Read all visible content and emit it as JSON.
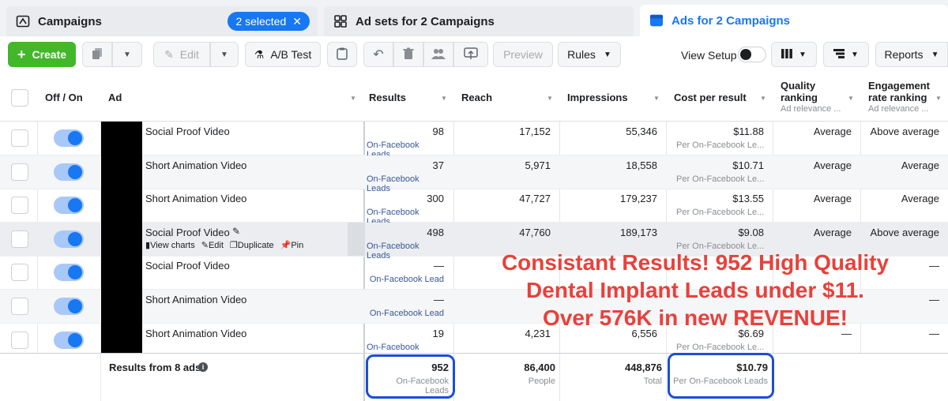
{
  "tabs": {
    "campaigns": "Campaigns",
    "selected": "2 selected",
    "adsets": "Ad sets for 2 Campaigns",
    "ads": "Ads for 2 Campaigns"
  },
  "toolbar": {
    "create": "Create",
    "edit": "Edit",
    "ab_test": "A/B Test",
    "preview": "Preview",
    "rules": "Rules",
    "view_setup": "View Setup",
    "reports": "Reports"
  },
  "columns": {
    "off_on": "Off / On",
    "ad": "Ad",
    "results": "Results",
    "reach": "Reach",
    "impressions": "Impressions",
    "cost": "Cost per result",
    "quality": "Quality ranking",
    "quality_sub": "Ad relevance ...",
    "engagement": "Engagement rate ranking",
    "engagement_sub": "Ad relevance ..."
  },
  "rows": [
    {
      "name": "Social Proof Video",
      "results": "98",
      "results_sub": "On-Facebook Leads",
      "reach": "17,152",
      "impressions": "55,346",
      "cost": "$11.88",
      "cost_sub": "Per On-Facebook Le...",
      "quality": "Average",
      "engagement": "Above average"
    },
    {
      "name": "Short Animation Video",
      "results": "37",
      "results_sub": "On-Facebook Leads",
      "reach": "5,971",
      "impressions": "18,558",
      "cost": "$10.71",
      "cost_sub": "Per On-Facebook Le...",
      "quality": "Average",
      "engagement": "Average"
    },
    {
      "name": "Short Animation Video",
      "results": "300",
      "results_sub": "On-Facebook Leads",
      "reach": "47,727",
      "impressions": "179,237",
      "cost": "$13.55",
      "cost_sub": "Per On-Facebook Le...",
      "quality": "Average",
      "engagement": "Average"
    },
    {
      "name": "Social Proof Video",
      "results": "498",
      "results_sub": "On-Facebook Leads",
      "reach": "47,760",
      "impressions": "189,173",
      "cost": "$9.08",
      "cost_sub": "Per On-Facebook Le...",
      "quality": "Average",
      "engagement": "Above average"
    },
    {
      "name": "Social Proof Video",
      "results": "—",
      "results_sub": "On-Facebook Lead",
      "reach": "",
      "impressions": "",
      "cost": "",
      "cost_sub": "",
      "quality": "",
      "engagement": "—"
    },
    {
      "name": "Short Animation Video",
      "results": "—",
      "results_sub": "On-Facebook Lead",
      "reach": "",
      "impressions": "",
      "cost": "",
      "cost_sub": "",
      "quality": "",
      "engagement": "—"
    },
    {
      "name": "Short Animation Video",
      "results": "19",
      "results_sub": "On-Facebook Leads",
      "reach": "4,231",
      "impressions": "6,556",
      "cost": "$6.69",
      "cost_sub": "Per On-Facebook Le...",
      "quality": "—",
      "engagement": "—"
    }
  ],
  "row_actions": {
    "view_charts": "View charts",
    "edit": "Edit",
    "duplicate": "Duplicate",
    "pin": "Pin"
  },
  "footer": {
    "label": "Results from 8 ads",
    "results": "952",
    "results_sub": "On-Facebook Leads",
    "reach": "86,400",
    "reach_sub": "People",
    "impressions": "448,876",
    "impressions_sub": "Total",
    "cost": "$10.79",
    "cost_sub": "Per On-Facebook Leads"
  },
  "overlay": {
    "line1": "Consistant Results! 952 High Quality",
    "line2": "Dental Implant Leads under $11.",
    "line3": "Over 576K in new REVENUE!"
  },
  "colors": {
    "accent": "#1877f2",
    "create": "#42b72a",
    "highlight_ring": "#1a4fd6",
    "overlay_text": "#e8413b"
  }
}
